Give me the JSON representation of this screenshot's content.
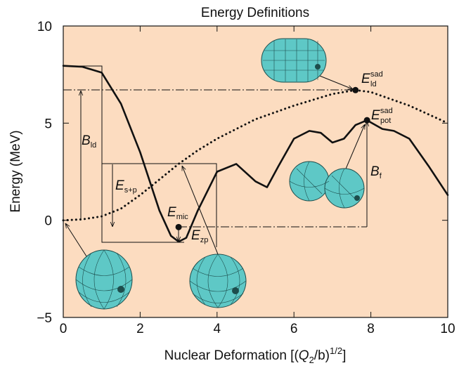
{
  "chart_data": {
    "type": "line",
    "title": "Energy Definitions",
    "y_label": "Energy (MeV)",
    "x_label": {
      "parts": [
        "Nuclear Deformation [(",
        "Q",
        "2",
        "/b)",
        "1/2",
        "]"
      ]
    },
    "xlim": [
      0,
      10
    ],
    "ylim": [
      -5,
      10
    ],
    "xticks": [
      0,
      2,
      4,
      6,
      8,
      10
    ],
    "yticks": [
      {
        "value": -5,
        "label": "−5"
      },
      0,
      5,
      10
    ],
    "background": "#fcdcc0",
    "series": [
      {
        "style": "solid",
        "color": "#111111",
        "x": [
          0,
          0.5,
          1.0,
          1.5,
          2.0,
          2.5,
          2.8,
          3.0,
          3.2,
          3.5,
          4.0,
          4.5,
          5.0,
          5.3,
          5.6,
          6.0,
          6.4,
          6.7,
          7.0,
          7.3,
          7.6,
          7.9,
          8.3,
          8.6,
          9.0,
          9.5,
          10
        ],
        "values": [
          7.95,
          7.9,
          7.6,
          6.0,
          3.5,
          0.5,
          -0.8,
          -1.1,
          -0.9,
          0.5,
          2.5,
          2.9,
          2.0,
          1.7,
          2.8,
          4.2,
          4.6,
          4.5,
          4.0,
          4.2,
          4.9,
          5.15,
          4.7,
          4.6,
          4.2,
          2.8,
          1.3
        ]
      },
      {
        "style": "dotted",
        "color": "#111111",
        "x": [
          0,
          0.5,
          1.0,
          1.5,
          2.0,
          2.5,
          3.0,
          3.5,
          4.0,
          5.0,
          6.0,
          7.0,
          7.6,
          8.0,
          9.0,
          10
        ],
        "values": [
          0,
          0.05,
          0.2,
          0.6,
          1.3,
          2.1,
          2.9,
          3.6,
          4.2,
          5.2,
          5.9,
          6.5,
          6.7,
          6.6,
          5.9,
          5.0
        ]
      }
    ],
    "points": {
      "x": [
        3.0,
        7.6,
        7.9
      ],
      "values": [
        -0.35,
        6.7,
        5.15
      ]
    },
    "annotations": [
      {
        "text": "B",
        "sub": "ld"
      },
      {
        "text": "E",
        "sub": "s+p"
      },
      {
        "text": "E",
        "sub": "mic"
      },
      {
        "text": "E",
        "sub": "zp"
      },
      {
        "text": "E",
        "sub": "ld",
        "sup": "sad"
      },
      {
        "text": "E",
        "sub": "pot",
        "sup": "sad"
      },
      {
        "text": "B",
        "sub": "f"
      }
    ]
  }
}
